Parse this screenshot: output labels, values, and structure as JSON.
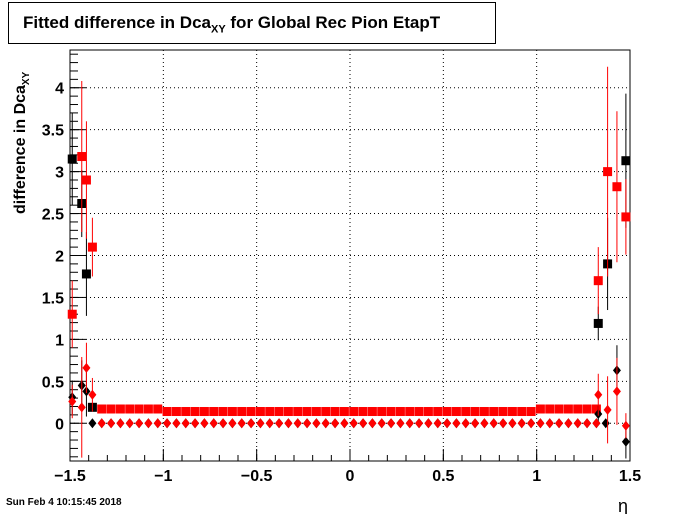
{
  "title": {
    "main": "Fitted difference in Dca",
    "sub": "XY",
    "rest": " for Global Rec Pion EtapT"
  },
  "ylabel": {
    "main": "difference in Dca",
    "sub": "XY"
  },
  "footer": "Sun Feb  4 10:15:45 2018",
  "chart_data": {
    "type": "scatter",
    "title": "Fitted difference in DcaXY for Global Rec Pion EtapT",
    "xlabel": "η",
    "ylabel": "difference in DcaXY",
    "xlim": [
      -1.5,
      1.5
    ],
    "ylim": [
      -0.45,
      4.45
    ],
    "grid": true,
    "legend": "none",
    "x_ticks": [
      -1.5,
      -1,
      -0.5,
      0,
      0.5,
      1,
      1.5
    ],
    "x_tick_labels": [
      "−1.5",
      "−1",
      "−0.5",
      "0",
      "0.5",
      "1",
      "1.5"
    ],
    "y_ticks": [
      0,
      0.5,
      1,
      1.5,
      2,
      2.5,
      3,
      3.5,
      4
    ],
    "y_tick_labels": [
      "0",
      "0.5",
      "1",
      "1.5",
      "2",
      "2.5",
      "3",
      "3.5",
      "4"
    ],
    "series": [
      {
        "color": "#000000",
        "marker": "square",
        "points": [
          {
            "x": -1.488,
            "y": 3.15,
            "err": 0.55
          },
          {
            "x": -1.437,
            "y": 2.62,
            "err": 0.4
          },
          {
            "x": -1.412,
            "y": 1.78,
            "err": 0.5
          },
          {
            "x": -1.38,
            "y": 0.19,
            "err": 0.05
          },
          {
            "x": 1.33,
            "y": 1.19,
            "err": 0.2
          },
          {
            "x": 1.38,
            "y": 1.9,
            "err": 0.55
          },
          {
            "x": 1.478,
            "y": 3.13,
            "err": 0.8
          }
        ]
      },
      {
        "color": "#ff0000",
        "marker": "square",
        "points": [
          {
            "x": -1.488,
            "y": 1.3,
            "err": 0.4
          },
          {
            "x": -1.437,
            "y": 3.18,
            "err": 0.9
          },
          {
            "x": -1.412,
            "y": 2.9,
            "err": 0.7
          },
          {
            "x": -1.38,
            "y": 2.1,
            "err": 0.35
          },
          {
            "x": 1.33,
            "y": 1.7,
            "err": 0.4
          },
          {
            "x": 1.38,
            "y": 3.0,
            "err": 1.25
          },
          {
            "x": 1.43,
            "y": 2.82,
            "err": 0.9
          },
          {
            "x": 1.478,
            "y": 2.46,
            "err": 0.45
          }
        ],
        "band": {
          "x_from": -1.33,
          "x_to": 1.33,
          "y_edge": 0.17,
          "y_center": 0.14,
          "marker_step": 0.05
        }
      },
      {
        "color": "#000000",
        "marker": "diamond",
        "points": [
          {
            "x": -1.488,
            "y": 0.31,
            "err": 0.2
          },
          {
            "x": -1.437,
            "y": 0.45,
            "err": 0.3
          },
          {
            "x": -1.412,
            "y": 0.38,
            "err": 0.3
          },
          {
            "x": 1.33,
            "y": 0.11,
            "err": 0.1
          },
          {
            "x": 1.43,
            "y": 0.63,
            "err": 0.3
          },
          {
            "x": 1.478,
            "y": -0.22,
            "err": 0.2
          }
        ],
        "band": {
          "x_from": -1.38,
          "x_to": 1.38,
          "y_edge": 0.0,
          "y_center": 0.0,
          "marker_step": 0.05
        }
      },
      {
        "color": "#ff0000",
        "marker": "diamond",
        "points": [
          {
            "x": -1.488,
            "y": 0.26,
            "err": 0.2
          },
          {
            "x": -1.437,
            "y": 0.19,
            "err": 0.6
          },
          {
            "x": -1.412,
            "y": 0.66,
            "err": 0.3
          },
          {
            "x": -1.38,
            "y": 0.34,
            "err": 0.2
          },
          {
            "x": 1.33,
            "y": 0.34,
            "err": 0.25
          },
          {
            "x": 1.38,
            "y": 0.16,
            "err": 0.4
          },
          {
            "x": 1.43,
            "y": 0.38,
            "err": 0.4
          },
          {
            "x": 1.478,
            "y": -0.03,
            "err": 0.15
          }
        ],
        "band": {
          "x_from": -1.33,
          "x_to": 1.33,
          "y_edge": 0.0,
          "y_center": 0.0,
          "marker_step": 0.05
        }
      }
    ]
  }
}
